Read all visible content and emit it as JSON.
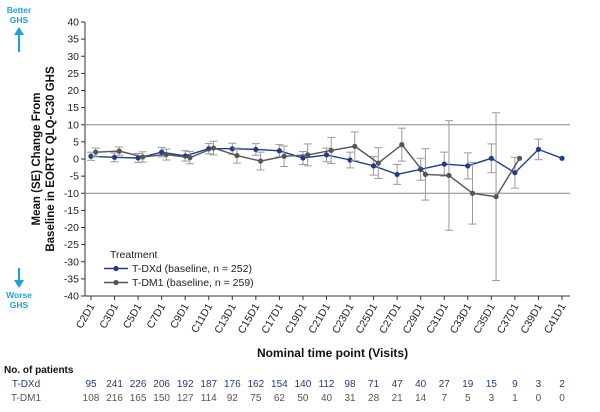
{
  "chart_data": {
    "type": "line",
    "ylabel_line1": "Mean (SE) Change From",
    "ylabel_line2": "Baseline in EORTC QLQ-C30 GHS",
    "xlabel": "Nominal time point (Visits)",
    "ylim": [
      -40,
      40
    ],
    "yticks": [
      -40,
      -35,
      -30,
      -25,
      -20,
      -15,
      -10,
      -5,
      0,
      5,
      10,
      15,
      20,
      25,
      30,
      35,
      40
    ],
    "reference_lines": [
      10,
      -10
    ],
    "better_label": "Better\nGHS",
    "worse_label": "Worse\nGHS",
    "legend_title": "Treatment",
    "legend_position": "lower-left",
    "categories": [
      "C2D1",
      "C3D1",
      "C5D1",
      "C7D1",
      "C9D1",
      "C11D1",
      "C13D1",
      "C15D1",
      "C17D1",
      "C19D1",
      "C21D1",
      "C23D1",
      "C25D1",
      "C27D1",
      "C29D1",
      "C31D1",
      "C33D1",
      "C35D1",
      "C37D1",
      "C39D1",
      "C41D1"
    ],
    "series": [
      {
        "name": "T-DXd (baseline, n = 252)",
        "color": "#1f3c88",
        "x": [
          0,
          1,
          2,
          3,
          4,
          5,
          6,
          7,
          8,
          9,
          10,
          11,
          12,
          13,
          14,
          15,
          16,
          17,
          18,
          19,
          20
        ],
        "values": [
          0.8,
          0.5,
          0.3,
          2.0,
          0.9,
          3.0,
          3.0,
          2.8,
          2.4,
          0.3,
          1.2,
          -0.3,
          -2.0,
          -4.5,
          -3.0,
          -1.5,
          -2.0,
          0.2,
          -4.0,
          2.8,
          0.2
        ],
        "se": [
          1.2,
          1.3,
          1.3,
          1.4,
          1.5,
          1.5,
          1.6,
          1.7,
          1.8,
          1.9,
          2.0,
          2.3,
          2.7,
          2.9,
          3.2,
          3.5,
          3.8,
          4.2,
          4.5,
          3.0,
          0
        ]
      },
      {
        "name": "T-DM1 (baseline, n = 259)",
        "color": "#555555",
        "x": [
          0.2,
          1.2,
          2.2,
          3.2,
          4.2,
          5.2,
          6.2,
          7.2,
          8.2,
          9.2,
          10.2,
          11.2,
          12.2,
          13.2,
          14.2,
          15.2,
          16.2,
          17.2,
          18.2
        ],
        "values": [
          2.0,
          2.3,
          0.6,
          1.3,
          0.4,
          3.2,
          1.0,
          -0.6,
          0.8,
          1.2,
          2.5,
          3.7,
          -1.2,
          4.2,
          -4.5,
          -4.8,
          -10.0,
          -11.0,
          0.2
        ],
        "se": [
          1.2,
          1.2,
          1.5,
          1.6,
          1.8,
          2.0,
          2.2,
          2.6,
          3.0,
          3.2,
          3.8,
          4.2,
          4.5,
          4.8,
          7.5,
          16.0,
          9.0,
          24.5,
          0
        ]
      }
    ],
    "patients_title": "No. of patients",
    "patients": [
      {
        "label": "T-DXd",
        "color": "#1f3c88",
        "counts": [
          "95",
          "241",
          "226",
          "206",
          "192",
          "187",
          "176",
          "162",
          "154",
          "140",
          "112",
          "98",
          "71",
          "47",
          "40",
          "27",
          "19",
          "15",
          "9",
          "3",
          "2"
        ]
      },
      {
        "label": "T-DM1",
        "color": "#555555",
        "counts": [
          "108",
          "216",
          "165",
          "150",
          "127",
          "114",
          "92",
          "75",
          "62",
          "50",
          "40",
          "31",
          "28",
          "21",
          "14",
          "7",
          "5",
          "3",
          "1",
          "0",
          "0"
        ]
      }
    ],
    "accent_color": "#1aa3d9"
  }
}
